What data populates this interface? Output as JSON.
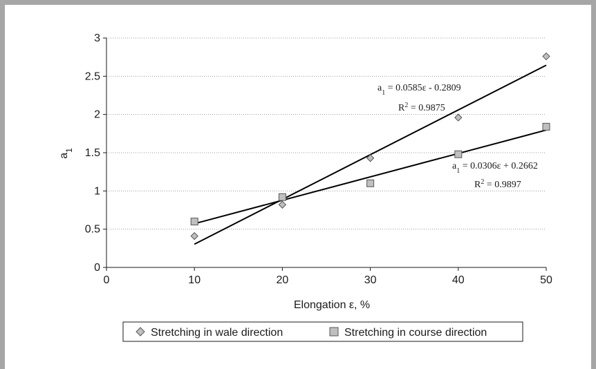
{
  "chart_data": {
    "type": "scatter",
    "xlabel": "Elongation ε, %",
    "ylabel_main": "a",
    "ylabel_sub": "1",
    "xlim": [
      0,
      50
    ],
    "ylim": [
      0,
      3
    ],
    "xticks": [
      0,
      10,
      20,
      30,
      40,
      50
    ],
    "yticks": [
      0,
      0.5,
      1,
      1.5,
      2,
      2.5,
      3
    ],
    "xtick_labels": [
      "0",
      "10",
      "20",
      "30",
      "40",
      "50"
    ],
    "ytick_labels": [
      "0",
      "0.5",
      "1",
      "1.5",
      "2",
      "2.5",
      "3"
    ],
    "grid": "horizontal dotted",
    "legend_position": "bottom",
    "series": [
      {
        "name": "Stretching in wale direction",
        "marker": "diamond",
        "color": "#bfbfbf",
        "x": [
          10,
          20,
          30,
          40,
          50
        ],
        "y": [
          0.41,
          0.82,
          1.43,
          1.96,
          2.76
        ],
        "trendline": {
          "slope": 0.0585,
          "intercept": -0.2809,
          "equation_prefix": "a",
          "equation_sub": "1",
          "equation_rest": " = 0.0585ε - 0.2809",
          "r2_prefix": "R",
          "r2_sup": "2",
          "r2_rest": " = 0.9875"
        }
      },
      {
        "name": "Stretching in course direction",
        "marker": "square",
        "color": "#bfbfbf",
        "x": [
          10,
          20,
          30,
          40,
          50
        ],
        "y": [
          0.6,
          0.92,
          1.1,
          1.48,
          1.84
        ],
        "trendline": {
          "slope": 0.0306,
          "intercept": 0.2662,
          "equation_prefix": "a",
          "equation_sub": "1",
          "equation_rest": " = 0.0306ε + 0.2662",
          "r2_prefix": "R",
          "r2_sup": "2",
          "r2_rest": " = 0.9897"
        }
      }
    ]
  },
  "colors": {
    "frame": "#a6a6a6",
    "axis": "#1a1a1a",
    "grid": "#9a9a9a",
    "marker_fill": "#bfbfbf",
    "trendline": "#000000"
  }
}
